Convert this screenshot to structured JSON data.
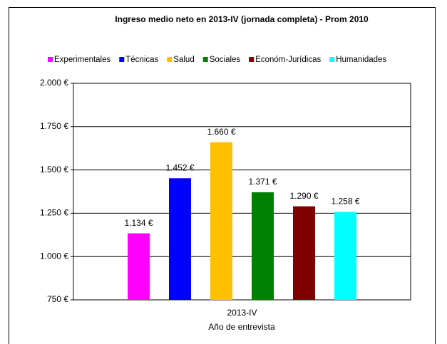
{
  "chart_data": {
    "type": "bar",
    "title": "Ingreso medio neto en 2013-IV (jornada completa) - Prom 2010",
    "categories": [
      "2013-IV"
    ],
    "x_label": "Año de entrevista",
    "series": [
      {
        "name": "Experimentales",
        "color": "#ff00ff",
        "values": [
          1134
        ],
        "value_labels": [
          "1.134 €"
        ]
      },
      {
        "name": "Técnicas",
        "color": "#0000ff",
        "values": [
          1452
        ],
        "value_labels": [
          "1.452 €"
        ]
      },
      {
        "name": "Salud",
        "color": "#ffc000",
        "values": [
          1660
        ],
        "value_labels": [
          "1.660 €"
        ]
      },
      {
        "name": "Sociales",
        "color": "#008000",
        "values": [
          1371
        ],
        "value_labels": [
          "1.371 €"
        ]
      },
      {
        "name": "Económ-Jurídicas",
        "color": "#800000",
        "values": [
          1290
        ],
        "value_labels": [
          "1.290 €"
        ]
      },
      {
        "name": "Humanidades",
        "color": "#00ffff",
        "values": [
          1258
        ],
        "value_labels": [
          "1.258 €"
        ]
      }
    ],
    "ylim": [
      750,
      2000
    ],
    "yticks": [
      {
        "value": 750,
        "label": "750 €"
      },
      {
        "value": 1000,
        "label": "1.000 €"
      },
      {
        "value": 1250,
        "label": "1.250 €"
      },
      {
        "value": 1500,
        "label": "1.500 €"
      },
      {
        "value": 1750,
        "label": "1.750 €"
      },
      {
        "value": 2000,
        "label": "2.000 €"
      }
    ],
    "grid": true,
    "legend": "top"
  }
}
